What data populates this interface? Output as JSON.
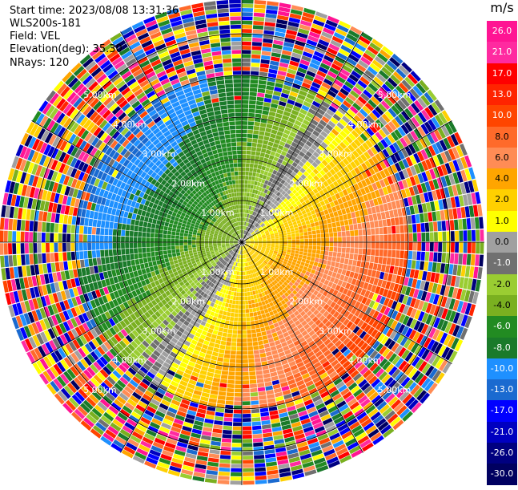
{
  "header": {
    "start_time": "Start time: 2023/08/08 13:31:36",
    "device": "WLS200s-181",
    "field": "Field: VEL",
    "elevation": "Elevation(deg): 35.30",
    "nrays": "NRays: 120"
  },
  "chart_data": {
    "type": "ppi-polar-heatmap",
    "field": "VEL",
    "units": "m/s",
    "n_rays": 120,
    "range_rings_km": [
      1,
      2,
      3,
      4,
      5
    ],
    "ring_labels": [
      "1.00km",
      "2.00km",
      "3.00km",
      "4.00km",
      "5.00km"
    ],
    "colorbar": {
      "unit_label": "m/s",
      "tick_labels": [
        "26.0",
        "21.0",
        "17.0",
        "13.0",
        "10.0",
        "8.0",
        "6.0",
        "4.0",
        "2.0",
        "1.0",
        "0.0",
        "-1.0",
        "-2.0",
        "-4.0",
        "-6.0",
        "-8.0",
        "-10.0",
        "-13.0",
        "-17.0",
        "-21.0",
        "-26.0",
        "-30.0"
      ],
      "colors": [
        "#ff1493",
        "#ff2aa0",
        "#ff0000",
        "#ff2400",
        "#ff4500",
        "#ff6a2a",
        "#ff8c55",
        "#ffa500",
        "#ffd000",
        "#ffff00",
        "#a0a0a0",
        "#707070",
        "#9acd32",
        "#7ab020",
        "#228b22",
        "#1a7a2a",
        "#1e90ff",
        "#1a6ad0",
        "#0000ff",
        "#0000c0",
        "#000080",
        "#000060"
      ]
    }
  }
}
